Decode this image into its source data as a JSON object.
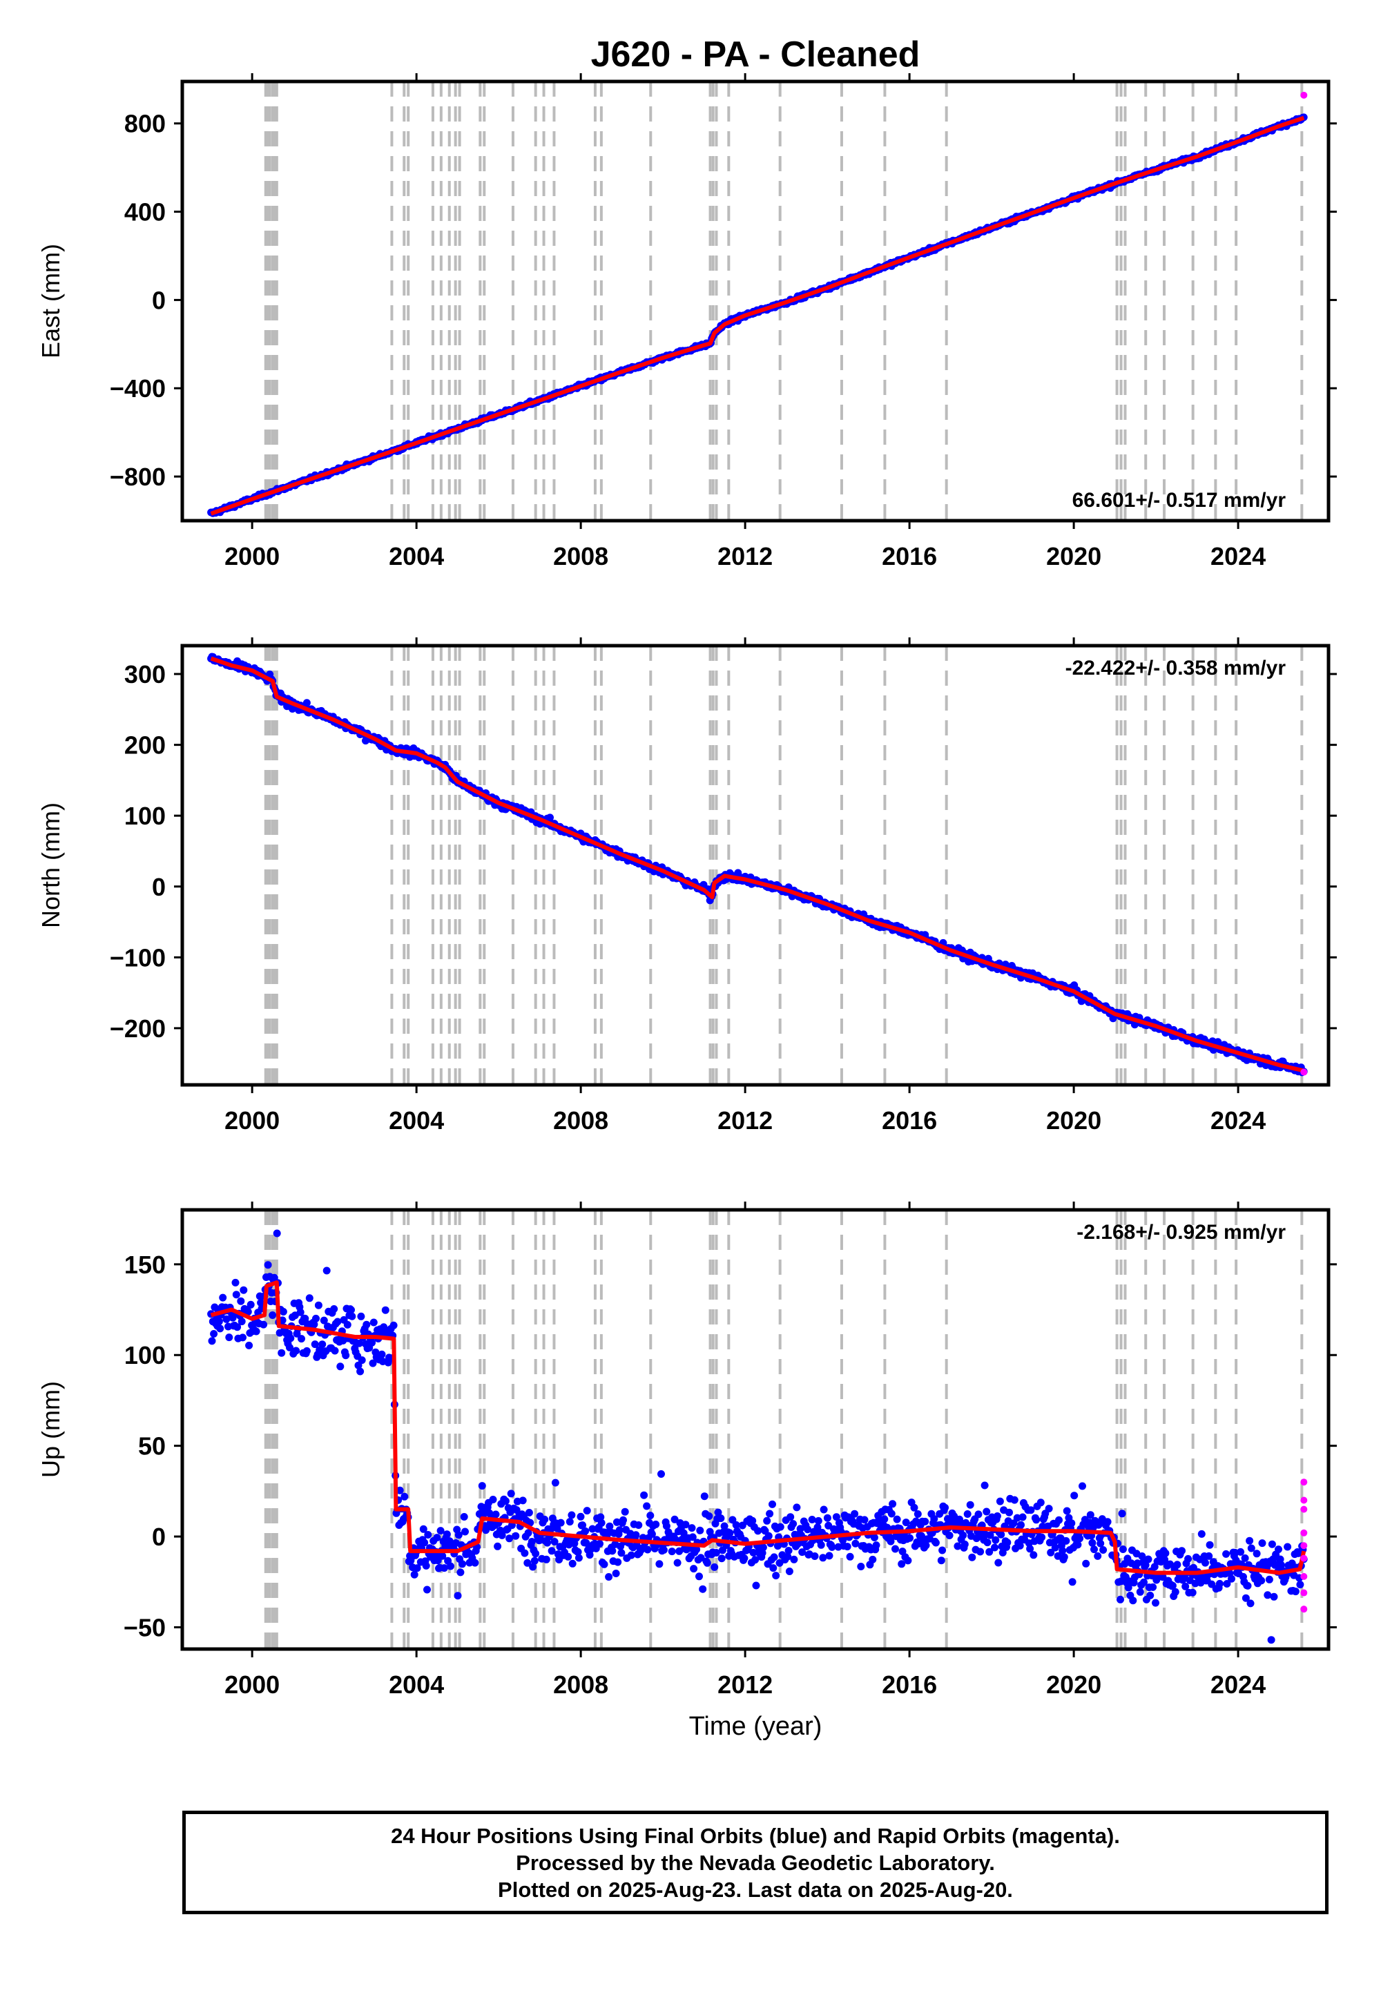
{
  "title": "J620  - PA - Cleaned",
  "colors": {
    "final": "#0000ff",
    "rapid": "#ff00ff",
    "model": "#ff0000",
    "offset_line": "#bbbbbb",
    "frame": "#000000"
  },
  "x_ticks": [
    "2000",
    "2004",
    "2008",
    "2012",
    "2016",
    "2020",
    "2024"
  ],
  "xlabel": "Time (year)",
  "chart_data": [
    {
      "type": "scatter",
      "component": "East",
      "ylabel": "East (mm)",
      "rate_text": "66.601+/- 0.517 mm/yr",
      "rate_position": "bottom-right",
      "xlim": [
        1998.3,
        2026.2
      ],
      "ylim": [
        -1000,
        990
      ],
      "y_ticks": [
        {
          "v": -800,
          "t": "−800"
        },
        {
          "v": -400,
          "t": "−400"
        },
        {
          "v": 0,
          "t": "0"
        },
        {
          "v": 400,
          "t": "400"
        },
        {
          "v": 800,
          "t": "800"
        }
      ],
      "model": [
        [
          1999.0,
          -968
        ],
        [
          2000.0,
          -902
        ],
        [
          2000.5,
          -870
        ],
        [
          2001.0,
          -838
        ],
        [
          2002.0,
          -775
        ],
        [
          2003.0,
          -712
        ],
        [
          2004.0,
          -648
        ],
        [
          2005.0,
          -583
        ],
        [
          2006.0,
          -518
        ],
        [
          2007.0,
          -455
        ],
        [
          2008.0,
          -390
        ],
        [
          2009.0,
          -325
        ],
        [
          2010.0,
          -262
        ],
        [
          2011.0,
          -205
        ],
        [
          2011.15,
          -197
        ],
        [
          2011.25,
          -150
        ],
        [
          2011.5,
          -110
        ],
        [
          2012.0,
          -70
        ],
        [
          2013.0,
          -10
        ],
        [
          2014.0,
          55
        ],
        [
          2015.0,
          125
        ],
        [
          2016.0,
          193
        ],
        [
          2017.0,
          260
        ],
        [
          2018.0,
          328
        ],
        [
          2019.0,
          395
        ],
        [
          2020.0,
          462
        ],
        [
          2021.0,
          528
        ],
        [
          2022.0,
          590
        ],
        [
          2023.0,
          650
        ],
        [
          2024.0,
          718
        ],
        [
          2025.0,
          788
        ],
        [
          2025.6,
          825
        ]
      ],
      "noise_mm": 6,
      "rapid_points": [
        [
          2025.6,
          928
        ]
      ]
    },
    {
      "type": "scatter",
      "component": "North",
      "ylabel": "North (mm)",
      "rate_text": "-22.422+/- 0.358 mm/yr",
      "rate_position": "top-right",
      "xlim": [
        1998.3,
        2026.2
      ],
      "ylim": [
        -280,
        340
      ],
      "y_ticks": [
        {
          "v": -200,
          "t": "−200"
        },
        {
          "v": -100,
          "t": "−100"
        },
        {
          "v": 0,
          "t": "0"
        },
        {
          "v": 100,
          "t": "100"
        },
        {
          "v": 200,
          "t": "200"
        },
        {
          "v": 300,
          "t": "300"
        }
      ],
      "model": [
        [
          1999.0,
          322
        ],
        [
          1999.5,
          312
        ],
        [
          2000.0,
          305
        ],
        [
          2000.5,
          290
        ],
        [
          2000.6,
          268
        ],
        [
          2001.0,
          258
        ],
        [
          2002.0,
          235
        ],
        [
          2003.0,
          208
        ],
        [
          2003.5,
          192
        ],
        [
          2004.0,
          188
        ],
        [
          2004.5,
          175
        ],
        [
          2004.7,
          168
        ],
        [
          2005.0,
          148
        ],
        [
          2006.0,
          118
        ],
        [
          2007.0,
          95
        ],
        [
          2008.0,
          70
        ],
        [
          2009.0,
          45
        ],
        [
          2010.0,
          22
        ],
        [
          2011.0,
          -5
        ],
        [
          2011.2,
          -15
        ],
        [
          2011.25,
          5
        ],
        [
          2011.5,
          15
        ],
        [
          2012.0,
          10
        ],
        [
          2013.0,
          -5
        ],
        [
          2014.0,
          -25
        ],
        [
          2015.0,
          -48
        ],
        [
          2016.0,
          -65
        ],
        [
          2017.0,
          -90
        ],
        [
          2018.0,
          -110
        ],
        [
          2019.0,
          -128
        ],
        [
          2020.0,
          -148
        ],
        [
          2021.0,
          -180
        ],
        [
          2022.0,
          -197
        ],
        [
          2023.0,
          -218
        ],
        [
          2024.0,
          -235
        ],
        [
          2025.0,
          -252
        ],
        [
          2025.6,
          -260
        ]
      ],
      "noise_mm": 4,
      "rapid_points": [
        [
          2025.6,
          -262
        ]
      ]
    },
    {
      "type": "scatter",
      "component": "Up",
      "ylabel": "Up (mm)",
      "rate_text": "-2.168+/- 0.925 mm/yr",
      "rate_position": "top-right",
      "xlim": [
        1998.3,
        2026.2
      ],
      "ylim": [
        -62,
        180
      ],
      "y_ticks": [
        {
          "v": -50,
          "t": "−50"
        },
        {
          "v": 0,
          "t": "0"
        },
        {
          "v": 50,
          "t": "50"
        },
        {
          "v": 100,
          "t": "100"
        },
        {
          "v": 150,
          "t": "150"
        }
      ],
      "model": [
        [
          1999.0,
          122
        ],
        [
          1999.5,
          125
        ],
        [
          2000.0,
          120
        ],
        [
          2000.3,
          122
        ],
        [
          2000.35,
          138
        ],
        [
          2000.6,
          140
        ],
        [
          2000.65,
          116
        ],
        [
          2001.5,
          114
        ],
        [
          2002.0,
          112
        ],
        [
          2002.5,
          110
        ],
        [
          2003.0,
          110
        ],
        [
          2003.45,
          109
        ],
        [
          2003.5,
          15
        ],
        [
          2003.8,
          15
        ],
        [
          2003.85,
          -8
        ],
        [
          2005.0,
          -8
        ],
        [
          2005.5,
          -3
        ],
        [
          2005.6,
          10
        ],
        [
          2006.5,
          8
        ],
        [
          2007.0,
          2
        ],
        [
          2009.0,
          -2
        ],
        [
          2011.0,
          -5
        ],
        [
          2011.2,
          -2
        ],
        [
          2012.0,
          -4
        ],
        [
          2013.0,
          -2
        ],
        [
          2014.0,
          0
        ],
        [
          2015.0,
          2
        ],
        [
          2016.0,
          3
        ],
        [
          2017.0,
          5
        ],
        [
          2018.0,
          4
        ],
        [
          2019.0,
          3
        ],
        [
          2020.0,
          3
        ],
        [
          2020.9,
          2
        ],
        [
          2021.0,
          -3
        ],
        [
          2021.05,
          -18
        ],
        [
          2022.0,
          -20
        ],
        [
          2023.0,
          -20
        ],
        [
          2024.0,
          -17
        ],
        [
          2025.0,
          -20
        ],
        [
          2025.5,
          -18
        ],
        [
          2025.6,
          -8
        ]
      ],
      "noise_mm": 11,
      "rapid_points": [
        [
          2025.6,
          20
        ],
        [
          2025.6,
          15
        ],
        [
          2025.6,
          2
        ],
        [
          2025.6,
          -5
        ],
        [
          2025.6,
          -12
        ],
        [
          2025.6,
          -22
        ],
        [
          2025.6,
          -31
        ],
        [
          2025.6,
          -40
        ],
        [
          2025.6,
          30
        ]
      ]
    }
  ],
  "offset_years": [
    2000.33,
    2000.38,
    2000.43,
    2000.5,
    2000.55,
    2000.6,
    2003.4,
    2003.7,
    2003.8,
    2004.4,
    2004.6,
    2004.8,
    2004.95,
    2005.05,
    2005.55,
    2005.65,
    2006.35,
    2006.9,
    2007.1,
    2007.35,
    2008.35,
    2008.5,
    2009.7,
    2011.15,
    2011.22,
    2011.3,
    2011.6,
    2012.85,
    2014.35,
    2015.4,
    2016.9,
    2021.05,
    2021.15,
    2021.25,
    2021.75,
    2022.2,
    2022.9,
    2023.45,
    2023.95,
    2025.55
  ],
  "footer": {
    "line1": "24 Hour Positions Using Final Orbits (blue) and Rapid Orbits (magenta).",
    "line2": "Processed by the Nevada Geodetic Laboratory.",
    "line3": "Plotted on 2025-Aug-23. Last data on 2025-Aug-20."
  }
}
